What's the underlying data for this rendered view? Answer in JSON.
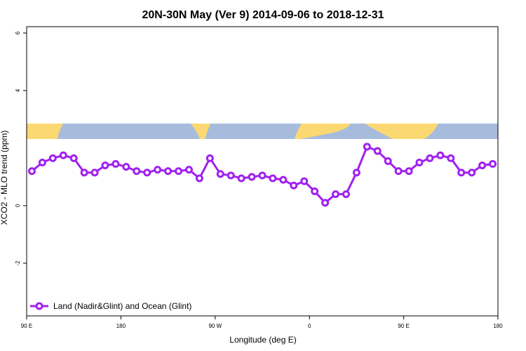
{
  "chart_data": {
    "type": "line",
    "title": "20N-30N May (Ver 9)   2014-09-06 to 2018-12-31",
    "x_label": "Longitude (deg E)",
    "y_label": "XCO2 - MLO trend (ppm)",
    "x": [
      95,
      105,
      115,
      125,
      135,
      145,
      155,
      165,
      175,
      185,
      195,
      205,
      215,
      225,
      235,
      245,
      255,
      265,
      275,
      285,
      295,
      305,
      315,
      325,
      335,
      345,
      355,
      365,
      375,
      385,
      395,
      405,
      415,
      425,
      435,
      445,
      455,
      465,
      475,
      485,
      495,
      505,
      515,
      525,
      535
    ],
    "series": [
      {
        "name": "Land (Nadir&Glint) and Ocean (Glint)",
        "color": "#a020f0",
        "values": [
          1.2,
          1.5,
          1.65,
          1.75,
          1.65,
          1.15,
          1.15,
          1.4,
          1.45,
          1.35,
          1.2,
          1.15,
          1.25,
          1.2,
          1.2,
          1.25,
          0.95,
          1.65,
          1.1,
          1.05,
          0.95,
          1.0,
          1.05,
          0.95,
          0.9,
          0.7,
          0.85,
          0.5,
          0.1,
          0.4,
          0.4,
          1.15,
          2.05,
          1.9,
          1.55,
          1.2,
          1.2,
          1.5,
          1.65,
          1.75,
          1.65,
          1.15,
          1.15,
          1.4,
          1.45
        ]
      }
    ],
    "xlim": [
      90,
      540
    ],
    "xticks": [
      {
        "value": 90,
        "label": "90 E"
      },
      180,
      {
        "value": 270,
        "label": "90 W"
      },
      {
        "value": 360,
        "label": "0"
      },
      {
        "value": 450,
        "label": "90 E"
      },
      {
        "value": 540,
        "label": "180"
      }
    ],
    "ylim": [
      -3.83,
      6.22
    ],
    "yticks": [
      -2,
      0,
      4,
      6
    ],
    "legend": "bottom-left"
  }
}
